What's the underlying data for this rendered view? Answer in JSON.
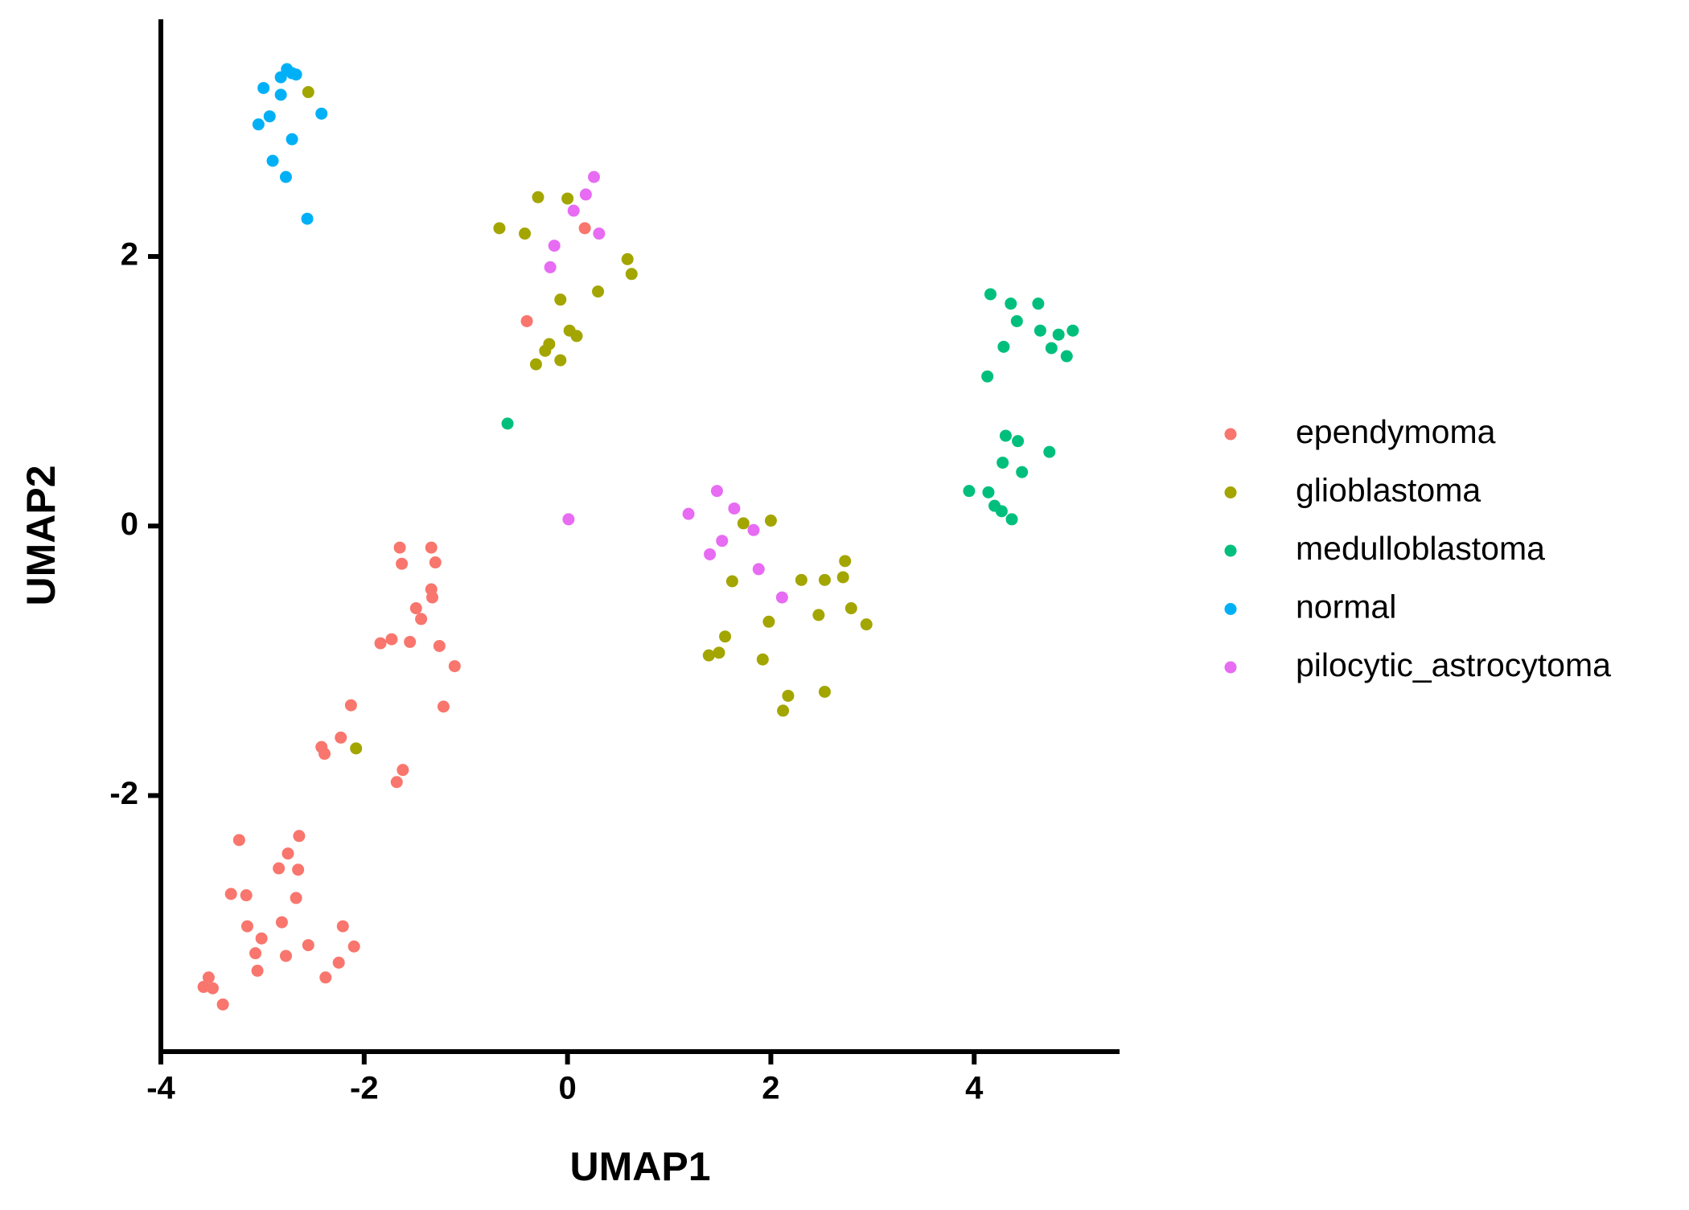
{
  "chart_data": {
    "type": "scatter",
    "x_label": "UMAP1",
    "y_label": "UMAP2",
    "xlim": [
      -4,
      5.43
    ],
    "ylim": [
      -3.9,
      3.76
    ],
    "xticks": [
      -4,
      -2,
      0,
      2,
      4
    ],
    "yticks": [
      -2,
      0,
      2
    ],
    "series": [
      {
        "name": "ependymoma",
        "color": "#F8766D",
        "x": [
          0.17,
          -0.4,
          -1.65,
          -1.34,
          -1.63,
          -1.3,
          -1.34,
          -1.33,
          -1.49,
          -1.44,
          -1.73,
          -1.84,
          -1.55,
          -1.26,
          -1.11,
          -2.13,
          -1.22,
          -2.23,
          -2.42,
          -2.39,
          -1.62,
          -1.68,
          -3.23,
          -2.64,
          -2.75,
          -2.84,
          -2.65,
          -3.31,
          -3.16,
          -2.67,
          -3.15,
          -2.81,
          -2.21,
          -3.01,
          -2.55,
          -2.1,
          -3.07,
          -2.77,
          -2.25,
          -3.05,
          -2.38,
          -3.53,
          -3.58,
          -3.49,
          -3.39
        ],
        "y": [
          2.21,
          1.52,
          -0.16,
          -0.16,
          -0.28,
          -0.27,
          -0.47,
          -0.53,
          -0.61,
          -0.69,
          -0.84,
          -0.87,
          -0.86,
          -0.89,
          -1.04,
          -1.33,
          -1.34,
          -1.57,
          -1.64,
          -1.69,
          -1.81,
          -1.9,
          -2.33,
          -2.3,
          -2.43,
          -2.54,
          -2.55,
          -2.73,
          -2.74,
          -2.76,
          -2.97,
          -2.94,
          -2.97,
          -3.06,
          -3.11,
          -3.12,
          -3.17,
          -3.19,
          -3.24,
          -3.3,
          -3.35,
          -3.35,
          -3.42,
          -3.43,
          -3.55
        ]
      },
      {
        "name": "glioblastoma",
        "color": "#A3A500",
        "x": [
          -2.55,
          -0.67,
          -0.29,
          -0.42,
          0.0,
          0.59,
          0.63,
          -0.07,
          0.3,
          0.02,
          0.09,
          -0.18,
          -0.22,
          -0.31,
          -0.07,
          -2.08,
          1.73,
          2.0,
          1.62,
          2.3,
          2.53,
          2.73,
          2.71,
          2.79,
          2.94,
          2.47,
          1.98,
          1.55,
          1.49,
          1.39,
          1.92,
          2.17,
          2.53,
          2.12
        ],
        "y": [
          3.22,
          2.21,
          2.44,
          2.17,
          2.43,
          1.98,
          1.87,
          1.68,
          1.74,
          1.45,
          1.41,
          1.35,
          1.3,
          1.2,
          1.23,
          -1.65,
          0.02,
          0.04,
          -0.41,
          -0.4,
          -0.4,
          -0.26,
          -0.38,
          -0.61,
          -0.73,
          -0.66,
          -0.71,
          -0.82,
          -0.94,
          -0.96,
          -0.99,
          -1.26,
          -1.23,
          -1.37
        ]
      },
      {
        "name": "medulloblastoma",
        "color": "#00BF7D",
        "x": [
          4.16,
          4.36,
          4.63,
          4.42,
          4.65,
          4.97,
          4.83,
          4.29,
          4.76,
          4.91,
          4.13,
          -0.59,
          4.31,
          4.43,
          4.74,
          4.28,
          4.47,
          3.95,
          4.14,
          4.2,
          4.27,
          4.37
        ],
        "y": [
          1.72,
          1.65,
          1.65,
          1.52,
          1.45,
          1.45,
          1.42,
          1.33,
          1.32,
          1.26,
          1.11,
          0.76,
          0.67,
          0.63,
          0.55,
          0.47,
          0.4,
          0.26,
          0.25,
          0.15,
          0.11,
          0.05
        ]
      },
      {
        "name": "normal",
        "color": "#00B0F6",
        "x": [
          -2.99,
          -2.76,
          -2.82,
          -2.67,
          -2.71,
          -2.82,
          -2.93,
          -3.04,
          -2.42,
          -2.71,
          -2.9,
          -2.77,
          -2.56
        ],
        "y": [
          3.25,
          3.39,
          3.33,
          3.35,
          3.36,
          3.2,
          3.04,
          2.98,
          3.06,
          2.87,
          2.71,
          2.59,
          2.28
        ]
      },
      {
        "name": "pilocytic_astrocytoma",
        "color": "#E76BF3",
        "x": [
          0.26,
          0.18,
          0.06,
          0.31,
          -0.13,
          -0.17,
          0.01,
          1.47,
          1.19,
          1.64,
          1.83,
          1.52,
          1.4,
          1.88,
          2.11
        ],
        "y": [
          2.59,
          2.46,
          2.34,
          2.17,
          2.08,
          1.92,
          0.05,
          0.26,
          0.09,
          0.13,
          -0.03,
          -0.11,
          -0.21,
          -0.32,
          -0.53
        ]
      }
    ]
  }
}
